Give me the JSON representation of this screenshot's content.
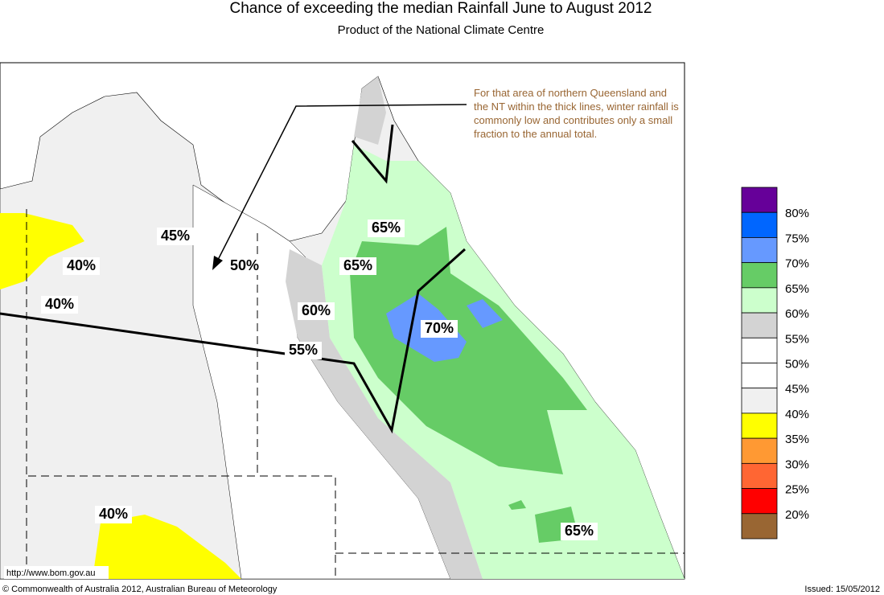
{
  "header": {
    "title": "Chance of exceeding the median Rainfall June to August 2012",
    "subtitle": "Product of the National Climate Centre"
  },
  "annotation": [
    "For that area of northern Queensland and",
    "the NT within the thick lines, winter rainfall is",
    "commonly low and contributes only a small",
    "fraction to the annual total."
  ],
  "map_labels": [
    "45%",
    "40%",
    "50%",
    "40%",
    "65%",
    "65%",
    "60%",
    "55%",
    "70%",
    "40%",
    "65%"
  ],
  "legend": {
    "colors": [
      "#660099",
      "#0066ff",
      "#6699ff",
      "#66cc66",
      "#ccffcc",
      "#d3d3d3",
      "#ffffff",
      "#ffffff",
      "#f0f0f0",
      "#ffff00",
      "#ff9933",
      "#ff6633",
      "#ff0000",
      "#996633"
    ],
    "labels": [
      "80%",
      "75%",
      "70%",
      "65%",
      "60%",
      "55%",
      "50%",
      "45%",
      "40%",
      "35%",
      "30%",
      "25%",
      "20%"
    ]
  },
  "footer": {
    "url": "http://www.bom.gov.au",
    "copyright": "© Commonwealth of Australia 2012, Australian Bureau of Meteorology",
    "issued": "Issued: 15/05/2012"
  }
}
